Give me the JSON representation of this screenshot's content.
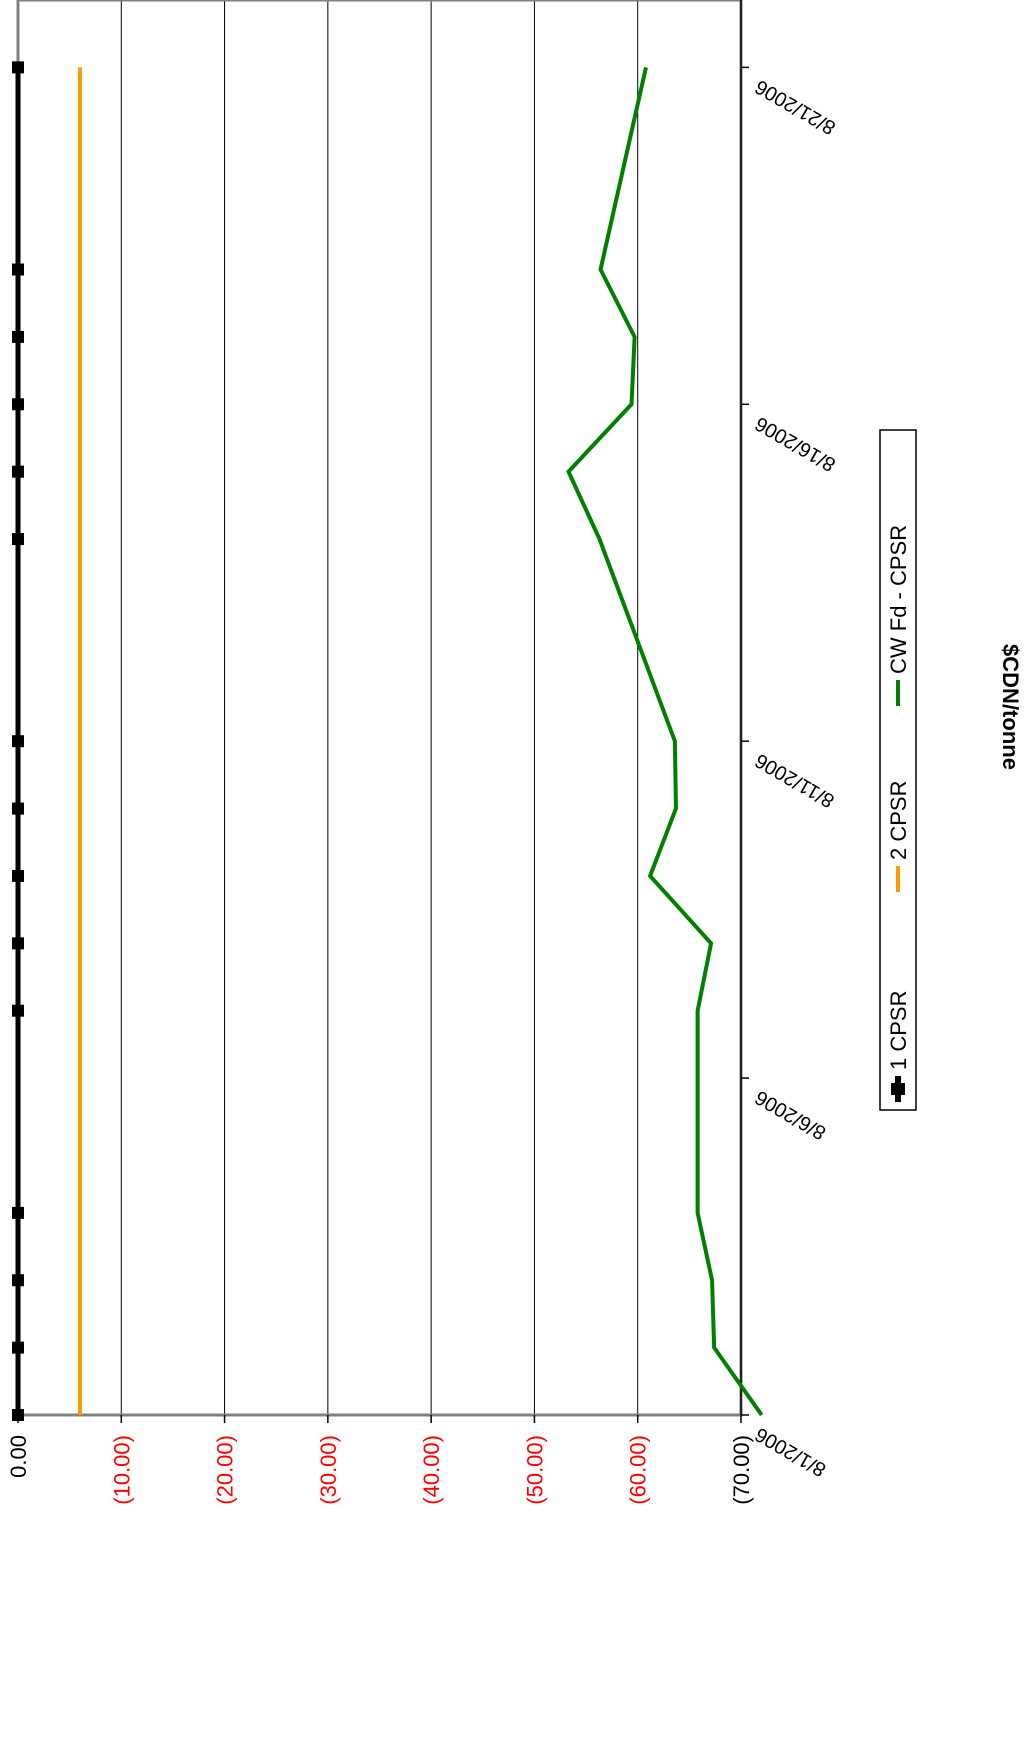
{
  "chart_data": {
    "type": "line",
    "ylabel": "$CDN/tonne",
    "ylim": [
      -70,
      0
    ],
    "yticks": [
      {
        "value": 0,
        "label": "0.00",
        "color": "#000000"
      },
      {
        "value": -10,
        "label": "(10.00)",
        "color": "#ff0000"
      },
      {
        "value": -20,
        "label": "(20.00)",
        "color": "#ff0000"
      },
      {
        "value": -30,
        "label": "(30.00)",
        "color": "#ff0000"
      },
      {
        "value": -40,
        "label": "(40.00)",
        "color": "#ff0000"
      },
      {
        "value": -50,
        "label": "(50.00)",
        "color": "#ff0000"
      },
      {
        "value": -60,
        "label": "(60.00)",
        "color": "#ff0000"
      },
      {
        "value": -70,
        "label": "(70.00)",
        "color": "#000000"
      }
    ],
    "xlim": [
      "8/1/2006",
      "8/22/2006"
    ],
    "xticks": [
      "8/1/2006",
      "8/6/2006",
      "8/11/2006",
      "8/16/2006",
      "8/21/2006"
    ],
    "grid": true,
    "legend_position": "bottom",
    "series": [
      {
        "name": "1 CPSR",
        "color": "#000000",
        "marker": "square",
        "points": [
          [
            "8/1/2006",
            0
          ],
          [
            "8/2/2006",
            0
          ],
          [
            "8/3/2006",
            0
          ],
          [
            "8/4/2006",
            0
          ],
          [
            "8/7/2006",
            0
          ],
          [
            "8/8/2006",
            0
          ],
          [
            "8/9/2006",
            0
          ],
          [
            "8/10/2006",
            0
          ],
          [
            "8/11/2006",
            0
          ],
          [
            "8/14/2006",
            0
          ],
          [
            "8/15/2006",
            0
          ],
          [
            "8/16/2006",
            0
          ],
          [
            "8/17/2006",
            0
          ],
          [
            "8/18/2006",
            0
          ],
          [
            "8/21/2006",
            0
          ]
        ]
      },
      {
        "name": "2 CPSR",
        "color": "#ff9900",
        "marker": "none",
        "points": [
          [
            "8/1/2006",
            -6
          ],
          [
            "8/21/2006",
            -6
          ]
        ]
      },
      {
        "name": "CW Fd - CPSR",
        "color": "#008000",
        "marker": "none",
        "points": [
          [
            "8/1/2006",
            -72
          ],
          [
            "8/2/2006",
            -67.4
          ],
          [
            "8/3/2006",
            -67.2
          ],
          [
            "8/4/2006",
            -65.8
          ],
          [
            "8/7/2006",
            -65.8
          ],
          [
            "8/8/2006",
            -67.1
          ],
          [
            "8/9/2006",
            -61.2
          ],
          [
            "8/10/2006",
            -63.7
          ],
          [
            "8/11/2006",
            -63.6
          ],
          [
            "8/14/2006",
            -56.3
          ],
          [
            "8/15/2006",
            -53.3
          ],
          [
            "8/16/2006",
            -59.4
          ],
          [
            "8/17/2006",
            -59.7
          ],
          [
            "8/18/2006",
            -56.4
          ],
          [
            "8/21/2006",
            -60.8
          ]
        ]
      }
    ]
  }
}
